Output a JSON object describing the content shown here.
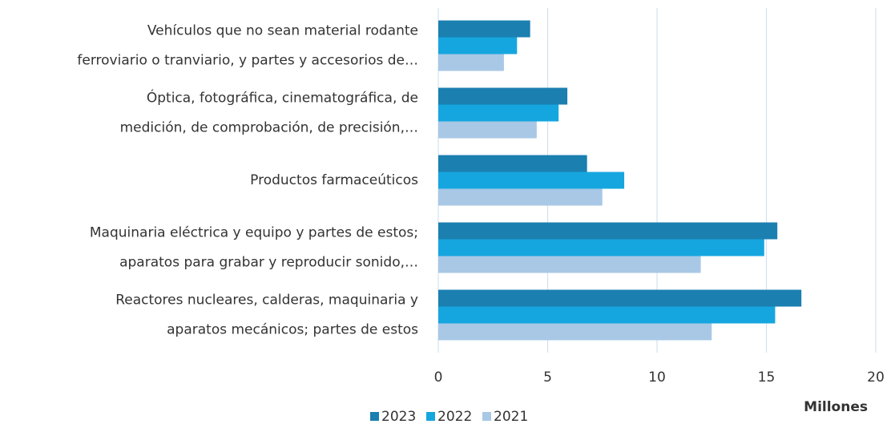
{
  "chart_data": {
    "type": "barh",
    "categories": [
      "Vehículos que no sean material rodante\nferroviario o tranviario, y partes y accesorios de…",
      "Óptica, fotográfica, cinematográfica, de\nmedición, de comprobación, de precisión,…",
      "Productos farmaceúticos",
      "Maquinaria eléctrica y equipo y partes de estos;\naparatos para grabar y reproducir sonido,…",
      "Reactores nucleares, calderas, maquinaria y\naparatos mecánicos; partes de estos"
    ],
    "series": [
      {
        "name": "2023",
        "color": "#1b7fb0",
        "values": [
          4.2,
          5.9,
          6.8,
          15.5,
          16.6
        ]
      },
      {
        "name": "2022",
        "color": "#16a6df",
        "values": [
          3.6,
          5.5,
          8.5,
          14.9,
          15.4
        ]
      },
      {
        "name": "2021",
        "color": "#a8c8e6",
        "values": [
          3.0,
          4.5,
          7.5,
          12.0,
          12.5
        ]
      }
    ],
    "xlim": [
      0,
      20
    ],
    "xticks": [
      0,
      5,
      10,
      15,
      20
    ],
    "xlabel": "Millones",
    "grid": true,
    "legend": "bottom"
  }
}
